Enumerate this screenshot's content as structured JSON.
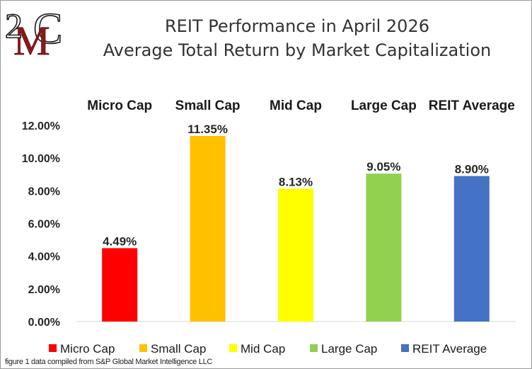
{
  "logo": {
    "text_top": "2",
    "text_mid": "M",
    "text_right": "C"
  },
  "chart_data": {
    "type": "bar",
    "title": [
      "REIT Performance in April 2026",
      "Average Total Return by Market Capitalization"
    ],
    "categories": [
      "Micro Cap",
      "Small Cap",
      "Mid Cap",
      "Large Cap",
      "REIT Average"
    ],
    "values": [
      4.49,
      11.35,
      8.13,
      9.05,
      8.9
    ],
    "data_labels": [
      "4.49%",
      "11.35%",
      "8.13%",
      "9.05%",
      "8.90%"
    ],
    "colors": [
      "#ff0000",
      "#ffc000",
      "#ffff00",
      "#92d050",
      "#4472c4"
    ],
    "ylim": [
      0,
      12
    ],
    "yticks": [
      0,
      2,
      4,
      6,
      8,
      10,
      12
    ],
    "ytick_labels": [
      "0.00%",
      "2.00%",
      "4.00%",
      "6.00%",
      "8.00%",
      "10.00%",
      "12.00%"
    ],
    "xlabel": "",
    "ylabel": "",
    "grid": false,
    "category_labels_position": "top",
    "legend": {
      "position": "bottom",
      "entries": [
        "Micro Cap",
        "Small Cap",
        "Mid Cap",
        "Large Cap",
        "REIT Average"
      ]
    }
  },
  "footnote": "figure 1 data compiled from S&P Global Market Intelligence LLC"
}
